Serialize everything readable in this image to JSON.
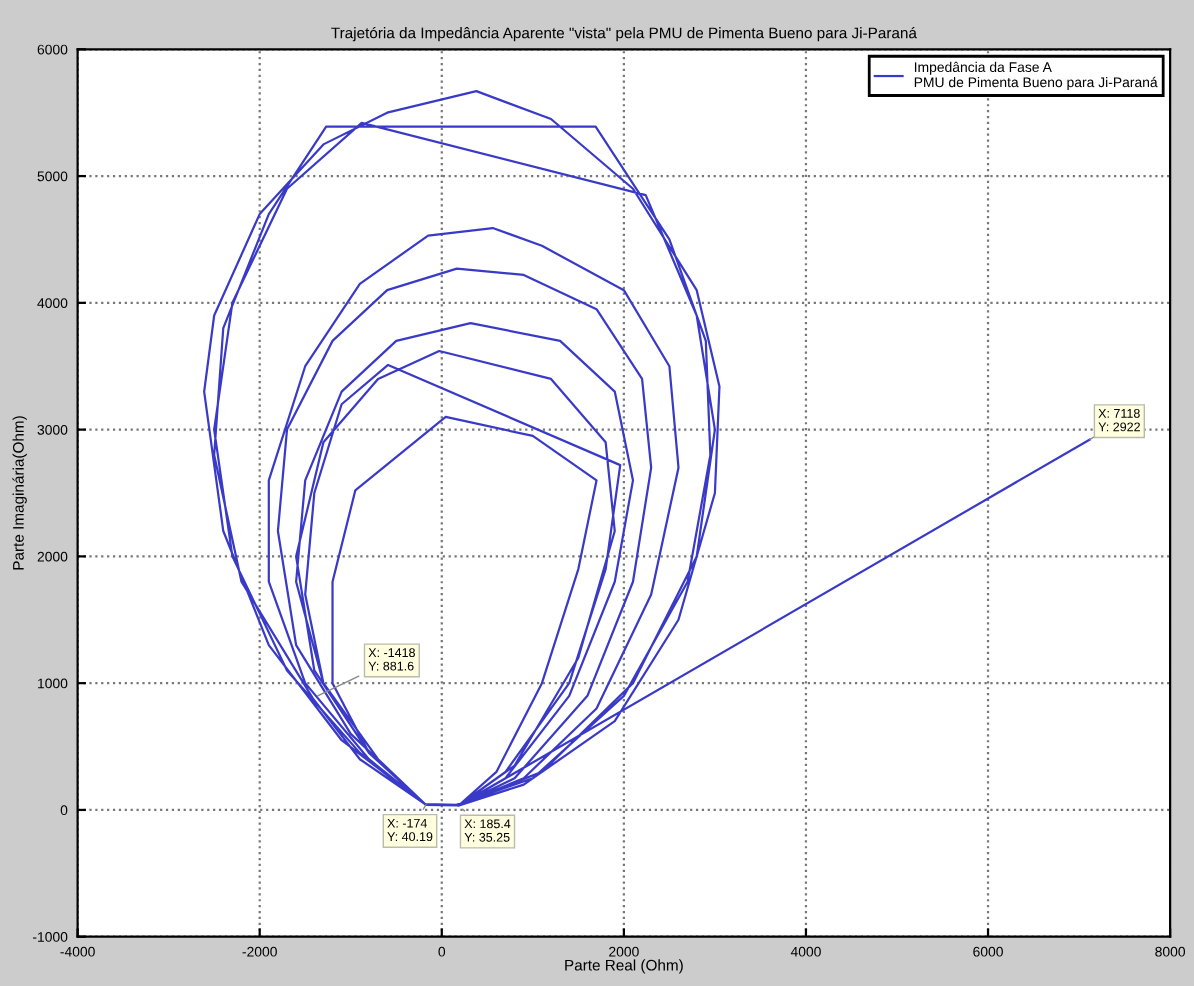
{
  "chart_data": {
    "type": "line",
    "title": "Trajetória da Impedância Aparente \"vista\" pela PMU de Pimenta Bueno para Ji-Paraná",
    "xlabel": "Parte Real (Ohm)",
    "ylabel": "Parte Imaginária(Ohm)",
    "xlim": [
      -4000,
      8000
    ],
    "xticks": [
      -4000,
      -2000,
      0,
      2000,
      4000,
      6000,
      8000
    ],
    "ylim": [
      -1000,
      6000
    ],
    "yticks": [
      -1000,
      0,
      1000,
      2000,
      3000,
      4000,
      5000,
      6000
    ],
    "grid": true,
    "legend": "top right",
    "marker": "none",
    "line_style": "solid",
    "series": [
      {
        "name": "Impedância da Fase A\nPMU de Pimenta Bueno para Ji-Paraná",
        "color": "#3a3ac8",
        "x": [
          185,
          900,
          1900,
          2600,
          3000,
          3050,
          2800,
          2100,
          1200,
          380,
          -600,
          -1300,
          -2000,
          -2500,
          -2610,
          -2400,
          -1900,
          -1100,
          -174,
          160,
          1000,
          2000,
          2700,
          2950,
          2900,
          2500,
          1690,
          -1270,
          -1900,
          -2400,
          -2500,
          -2200,
          -1418,
          -900,
          -180,
          170,
          1100,
          2100,
          2800,
          3000,
          2800,
          2240,
          -880,
          -1700,
          -2300,
          -2500,
          -2300,
          -1700,
          -900,
          -170,
          180,
          900,
          1700,
          2300,
          2600,
          2500,
          2000,
          1100,
          560,
          -150,
          -900,
          -1500,
          -1900,
          -1900,
          -1500,
          -800,
          -175,
          180,
          800,
          1600,
          2100,
          2300,
          2200,
          1700,
          900,
          165,
          -600,
          -1200,
          -1700,
          -1800,
          -1600,
          -1000,
          -175,
          180,
          700,
          1400,
          1900,
          2100,
          1900,
          1300,
          316,
          -500,
          -1100,
          -1500,
          -1600,
          -1300,
          -700,
          -175,
          185,
          700,
          1400,
          1800,
          1960,
          -590,
          -1100,
          -1400,
          -1500,
          -1300,
          -700,
          -175,
          185,
          800,
          1500,
          1900,
          1800,
          1200,
          -28,
          -700,
          -1300,
          -1600,
          -1400,
          -800,
          -175,
          185,
          600,
          1100,
          1500,
          1700,
          1000,
          43,
          -950,
          -1200,
          -1200,
          -800,
          -174,
          185.4,
          7118
        ],
        "values": [
          35,
          200,
          700,
          1500,
          2500,
          3340,
          4100,
          4900,
          5450,
          5670,
          5500,
          5250,
          4700,
          3900,
          3300,
          2200,
          1300,
          550,
          40,
          40,
          250,
          900,
          1800,
          2800,
          3700,
          4500,
          5390,
          5390,
          4700,
          3800,
          2800,
          1800,
          881.6,
          400,
          45,
          40,
          300,
          1000,
          2000,
          3000,
          3900,
          4850,
          5420,
          4900,
          4000,
          3000,
          2000,
          1100,
          450,
          40,
          35,
          250,
          800,
          1700,
          2700,
          3500,
          4100,
          4450,
          4590,
          4530,
          4150,
          3500,
          2600,
          1800,
          1000,
          400,
          40,
          35,
          250,
          900,
          1800,
          2700,
          3400,
          3950,
          4220,
          4270,
          4100,
          3700,
          3000,
          2200,
          1300,
          600,
          40,
          35,
          250,
          900,
          1800,
          2600,
          3300,
          3700,
          3840,
          3700,
          3300,
          2600,
          1800,
          1000,
          400,
          40,
          35,
          300,
          1000,
          1900,
          2720,
          3510,
          3200,
          2500,
          1700,
          1000,
          400,
          40,
          35,
          350,
          1200,
          2200,
          2900,
          3400,
          3620,
          3400,
          2900,
          2000,
          1100,
          450,
          40,
          35,
          300,
          1000,
          1900,
          2600,
          2950,
          3100,
          2520,
          1800,
          1000,
          450,
          40.19,
          35.25,
          2922
        ]
      }
    ],
    "annotations": [
      {
        "text": "X: -1418\nY: 881.6",
        "x": -1418,
        "y": 881.6
      },
      {
        "text": "X: -174\nY: 40.19",
        "x": -174,
        "y": 40.19
      },
      {
        "text": "X: 185.4\nY: 35.25",
        "x": 185.4,
        "y": 35.25
      },
      {
        "text": "X: 7118\nY: 2922",
        "x": 7118,
        "y": 2922
      }
    ]
  }
}
